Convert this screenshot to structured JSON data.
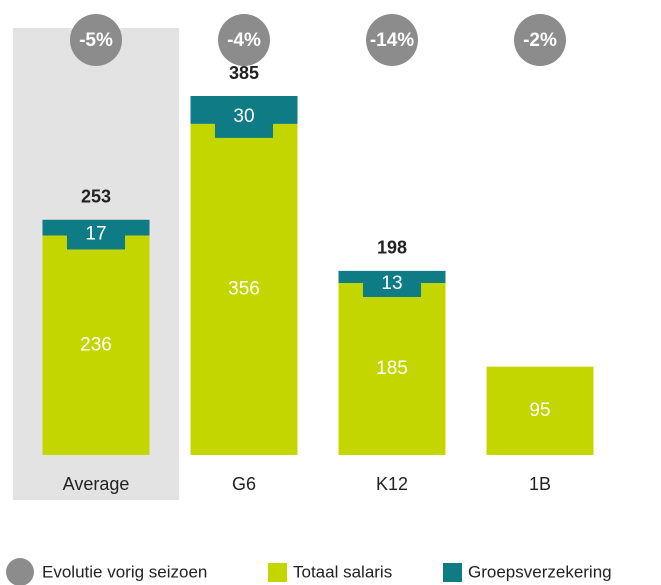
{
  "chart_data": {
    "type": "bar",
    "stacked": true,
    "categories": [
      "Average",
      "G6",
      "K12",
      "1B"
    ],
    "series": [
      {
        "name": "Totaal salaris",
        "color": "#c4d600",
        "values": [
          236,
          356,
          185,
          95
        ]
      },
      {
        "name": "Groepsverzekering",
        "color": "#0f7b84",
        "values": [
          17,
          30,
          13,
          null
        ]
      }
    ],
    "totals": [
      253,
      385,
      198,
      null
    ],
    "evolution": {
      "name": "Evolutie vorig seizoen",
      "color": "#8c8c8c",
      "values": [
        -5,
        -4,
        -14,
        -2
      ],
      "value_labels": [
        "-5%",
        "-4%",
        "-14%",
        "-2%"
      ]
    },
    "highlight_index": 0
  }
}
